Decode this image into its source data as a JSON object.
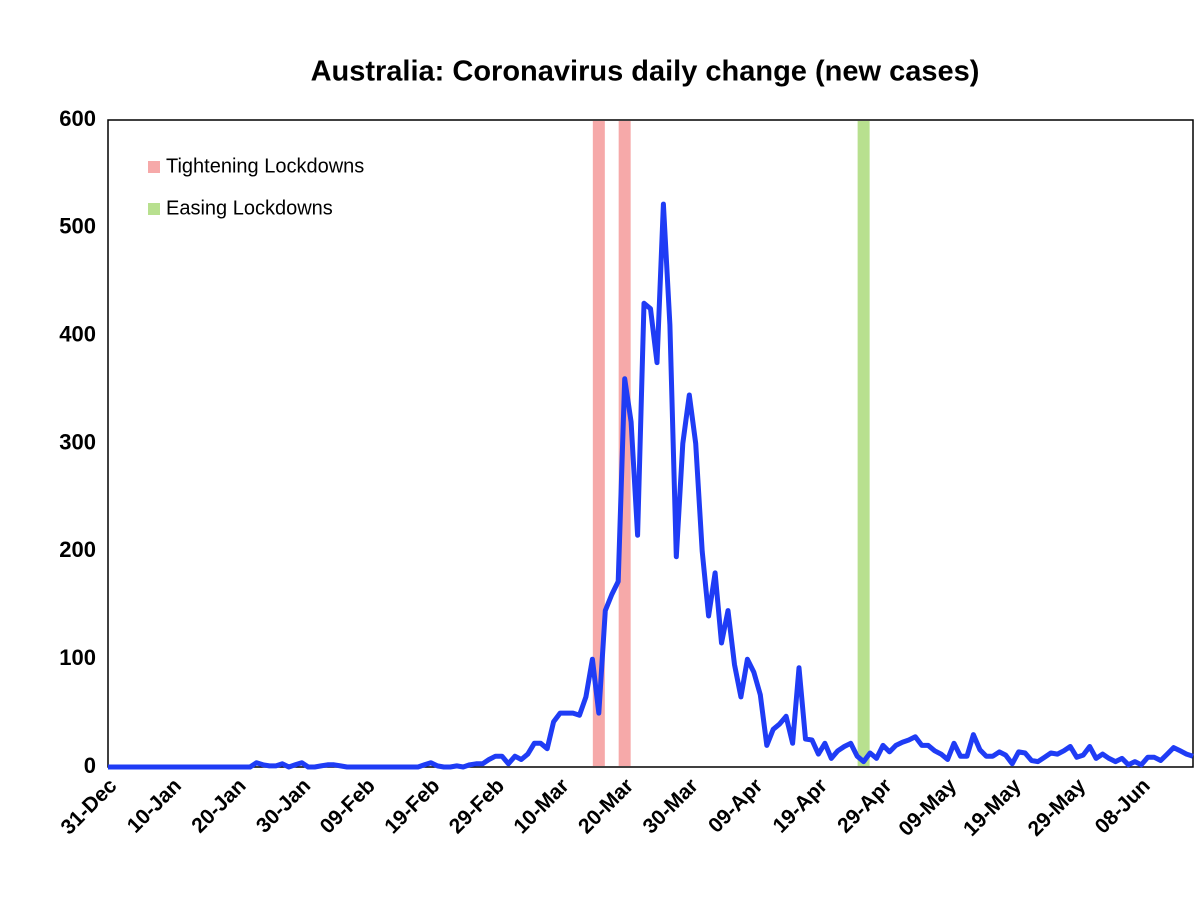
{
  "chart_data": {
    "type": "line",
    "title": "Australia: Coronavirus daily change (new cases)",
    "categories": [
      "31-Dec",
      null,
      null,
      null,
      null,
      null,
      null,
      null,
      null,
      null,
      "10-Jan",
      null,
      null,
      null,
      null,
      null,
      null,
      null,
      null,
      null,
      "20-Jan",
      null,
      null,
      null,
      null,
      null,
      null,
      null,
      null,
      null,
      "30-Jan",
      null,
      null,
      null,
      null,
      null,
      null,
      null,
      null,
      null,
      "09-Feb",
      null,
      null,
      null,
      null,
      null,
      null,
      null,
      null,
      null,
      "19-Feb",
      null,
      null,
      null,
      null,
      null,
      null,
      null,
      null,
      null,
      "29-Feb",
      null,
      null,
      null,
      null,
      null,
      null,
      null,
      null,
      null,
      "10-Mar",
      null,
      null,
      null,
      null,
      null,
      null,
      null,
      null,
      null,
      "20-Mar",
      null,
      null,
      null,
      null,
      null,
      null,
      null,
      null,
      null,
      "30-Mar",
      null,
      null,
      null,
      null,
      null,
      null,
      null,
      null,
      null,
      "09-Apr",
      null,
      null,
      null,
      null,
      null,
      null,
      null,
      null,
      null,
      "19-Apr",
      null,
      null,
      null,
      null,
      null,
      null,
      null,
      null,
      null,
      "29-Apr",
      null,
      null,
      null,
      null,
      null,
      null,
      null,
      null,
      null,
      "09-May",
      null,
      null,
      null,
      null,
      null,
      null,
      null,
      null,
      null,
      "19-May",
      null,
      null,
      null,
      null,
      null,
      null,
      null,
      null,
      null,
      "29-May",
      null,
      null,
      null,
      null,
      null,
      null,
      null,
      null,
      null,
      "08-Jun",
      null,
      null,
      null,
      null,
      null,
      null,
      null,
      null
    ],
    "series": [
      {
        "color": "#1f3cf5",
        "values": [
          0,
          0,
          0,
          0,
          0,
          0,
          0,
          0,
          0,
          0,
          0,
          0,
          0,
          0,
          0,
          0,
          0,
          0,
          0,
          0,
          0,
          0,
          0,
          4,
          2,
          1,
          1,
          3,
          0,
          2,
          4,
          0,
          0,
          1,
          2,
          2,
          1,
          0,
          0,
          0,
          0,
          0,
          0,
          0,
          0,
          0,
          0,
          0,
          0,
          2,
          4,
          1,
          0,
          0,
          1,
          0,
          2,
          3,
          3,
          7,
          10,
          10,
          3,
          10,
          7,
          12,
          22,
          22,
          17,
          42,
          50,
          50,
          50,
          48,
          65,
          100,
          50,
          145,
          160,
          172,
          360,
          320,
          215,
          430,
          425,
          375,
          522,
          410,
          195,
          300,
          345,
          300,
          200,
          140,
          180,
          115,
          145,
          95,
          65,
          100,
          88,
          67,
          20,
          35,
          40,
          47,
          22,
          92,
          26,
          25,
          12,
          22,
          8,
          15,
          19,
          22,
          10,
          5,
          13,
          8,
          20,
          14,
          20,
          23,
          25,
          28,
          20,
          20,
          15,
          12,
          7,
          22,
          10,
          10,
          30,
          16,
          10,
          10,
          14,
          11,
          3,
          14,
          13,
          6,
          5,
          9,
          13,
          12,
          15,
          19,
          9,
          11,
          19,
          8,
          12,
          8,
          5,
          8,
          2,
          5,
          2,
          9,
          9,
          6,
          12,
          18,
          15,
          12,
          10
        ]
      }
    ],
    "highlights": [
      {
        "name": "Tightening Lockdowns",
        "color": "#f6a9a9",
        "at": [
          76,
          80
        ]
      },
      {
        "name": "Easing Lockdowns",
        "color": "#b8e08f",
        "at": [
          117
        ]
      }
    ],
    "ylim": [
      0,
      600
    ],
    "yticks": [
      0,
      100,
      200,
      300,
      400,
      500,
      600
    ],
    "grid": false
  }
}
